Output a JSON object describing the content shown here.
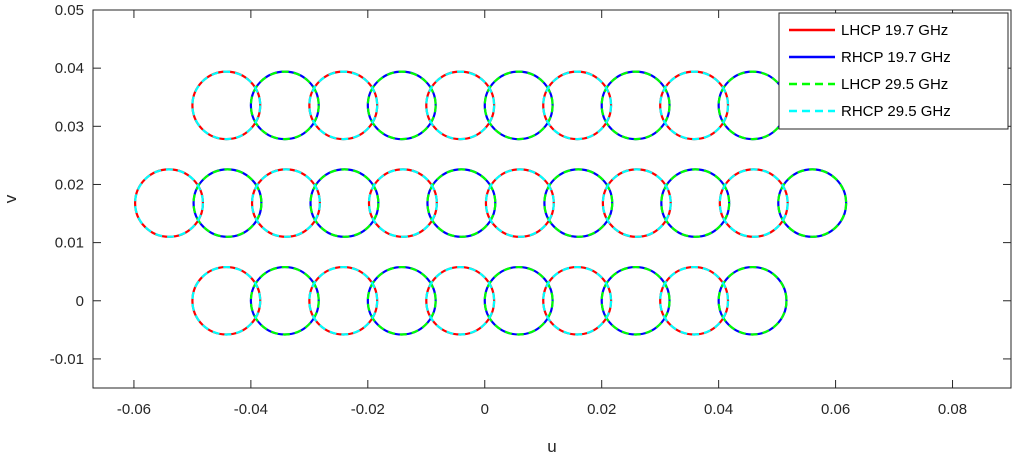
{
  "chart_data": {
    "type": "line",
    "title": "",
    "xlabel": "u",
    "ylabel": "v",
    "xlim": [
      -0.067,
      0.09
    ],
    "ylim": [
      -0.015,
      0.05
    ],
    "xticks": [
      "-0.06",
      "-0.04",
      "-0.02",
      "0",
      "0.02",
      "0.04",
      "0.06",
      "0.08"
    ],
    "yticks": [
      "-0.01",
      "0",
      "0.01",
      "0.02",
      "0.03",
      "0.04",
      "0.05"
    ],
    "grid": false,
    "legend_position": "top-right",
    "beam_radius": 0.0058,
    "series": [
      {
        "name": "LHCP 19.7 GHz",
        "color": "#ff0000",
        "style": "solid",
        "centers": [
          [
            -0.0442,
            0.0336
          ],
          [
            -0.0242,
            0.0336
          ],
          [
            -0.0042,
            0.0336
          ],
          [
            0.0158,
            0.0336
          ],
          [
            0.0358,
            0.0336
          ],
          [
            -0.054,
            0.0168
          ],
          [
            -0.034,
            0.0168
          ],
          [
            -0.014,
            0.0168
          ],
          [
            0.006,
            0.0168
          ],
          [
            0.026,
            0.0168
          ],
          [
            0.046,
            0.0168
          ],
          [
            -0.0442,
            0
          ],
          [
            -0.0242,
            0
          ],
          [
            -0.0042,
            0
          ],
          [
            0.0158,
            0
          ],
          [
            0.0358,
            0
          ]
        ]
      },
      {
        "name": "RHCP 19.7 GHz",
        "color": "#0000ff",
        "style": "solid",
        "centers": [
          [
            -0.0342,
            0.0336
          ],
          [
            -0.0142,
            0.0336
          ],
          [
            0.0058,
            0.0336
          ],
          [
            0.0258,
            0.0336
          ],
          [
            0.0458,
            0.0336
          ],
          [
            -0.044,
            0.0168
          ],
          [
            -0.024,
            0.0168
          ],
          [
            -0.004,
            0.0168
          ],
          [
            0.016,
            0.0168
          ],
          [
            0.036,
            0.0168
          ],
          [
            0.056,
            0.0168
          ],
          [
            -0.0342,
            0
          ],
          [
            -0.0142,
            0
          ],
          [
            0.0058,
            0
          ],
          [
            0.0258,
            0
          ],
          [
            0.0458,
            0
          ]
        ]
      },
      {
        "name": "LHCP 29.5 GHz",
        "color": "#00ff00",
        "style": "dashed",
        "centers": [
          [
            -0.0342,
            0.0336
          ],
          [
            -0.0142,
            0.0336
          ],
          [
            0.0058,
            0.0336
          ],
          [
            0.0258,
            0.0336
          ],
          [
            0.0458,
            0.0336
          ],
          [
            -0.044,
            0.0168
          ],
          [
            -0.024,
            0.0168
          ],
          [
            -0.004,
            0.0168
          ],
          [
            0.016,
            0.0168
          ],
          [
            0.036,
            0.0168
          ],
          [
            0.056,
            0.0168
          ],
          [
            -0.0342,
            0
          ],
          [
            -0.0142,
            0
          ],
          [
            0.0058,
            0
          ],
          [
            0.0258,
            0
          ],
          [
            0.0458,
            0
          ]
        ]
      },
      {
        "name": "RHCP 29.5 GHz",
        "color": "#00ffff",
        "style": "dashed",
        "centers": [
          [
            -0.0442,
            0.0336
          ],
          [
            -0.0242,
            0.0336
          ],
          [
            -0.0042,
            0.0336
          ],
          [
            0.0158,
            0.0336
          ],
          [
            0.0358,
            0.0336
          ],
          [
            -0.054,
            0.0168
          ],
          [
            -0.034,
            0.0168
          ],
          [
            -0.014,
            0.0168
          ],
          [
            0.006,
            0.0168
          ],
          [
            0.026,
            0.0168
          ],
          [
            0.046,
            0.0168
          ],
          [
            -0.0442,
            0
          ],
          [
            -0.0242,
            0
          ],
          [
            -0.0042,
            0
          ],
          [
            0.0158,
            0
          ],
          [
            0.0358,
            0
          ]
        ]
      }
    ]
  }
}
